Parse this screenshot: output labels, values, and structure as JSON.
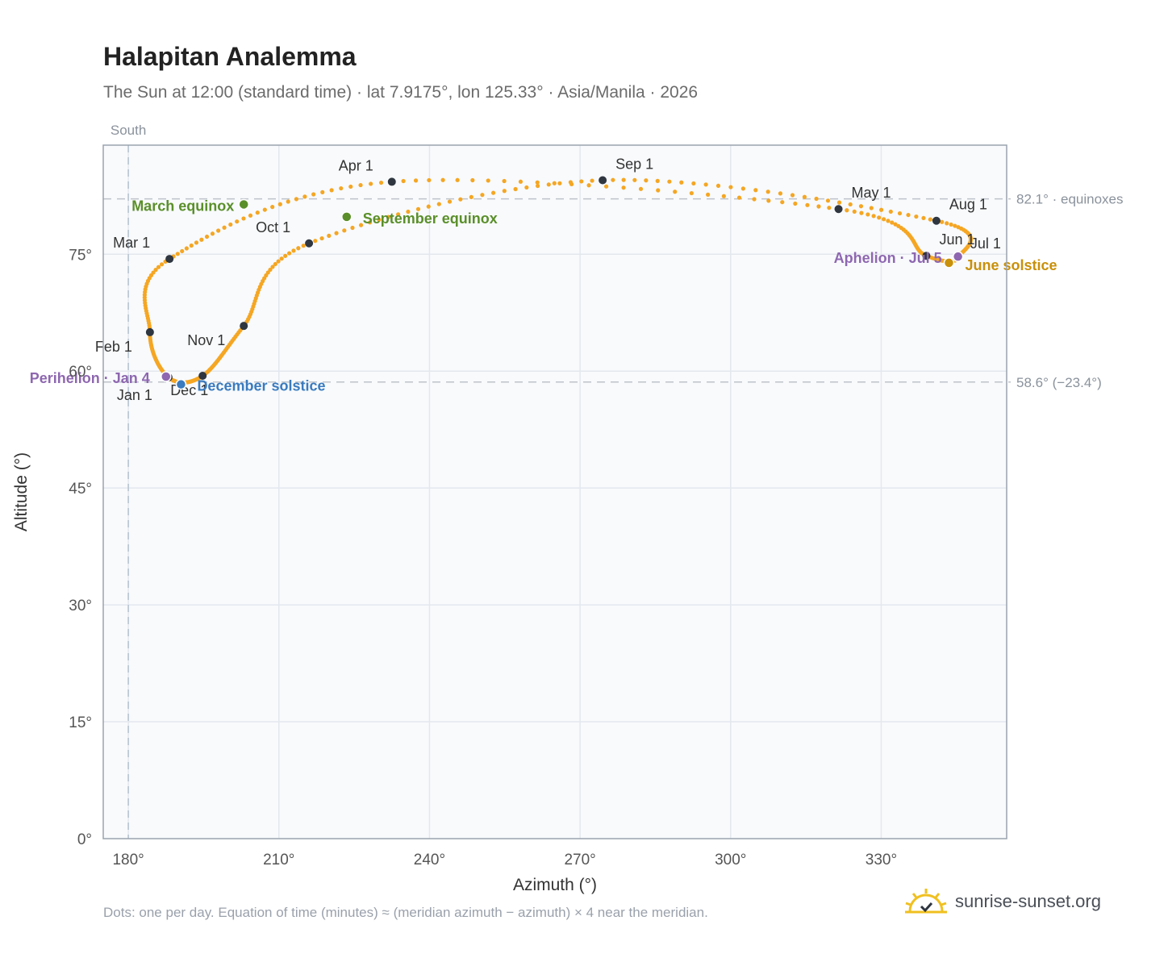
{
  "header": {
    "title": "Halapitan Analemma",
    "subtitle": "The Sun at 12:00 (standard time) · lat 7.9175°, lon 125.33° · Asia/Manila · 2026"
  },
  "footer": {
    "note": "Dots: one per day. Equation of time (minutes) ≈ (meridian azimuth − azimuth) × 4 near the meridian.",
    "brand": "sunrise-sunset.org"
  },
  "colors": {
    "curve": "#f5a623",
    "month_dot": "#2f3640",
    "equinox": "#5a8f29",
    "june_solstice": "#c9900a",
    "december_solstice": "#3a7bbf",
    "perihelion": "#8e67b0",
    "plot_bg": "#f8fafc",
    "ref_line": "#bfc4cb",
    "logo": "#f0c020"
  },
  "chart_data": {
    "type": "scatter",
    "title": "Halapitan Analemma",
    "xlabel": "Azimuth (°)",
    "ylabel": "Altitude (°)",
    "xlim": [
      175,
      355
    ],
    "ylim": [
      0,
      89
    ],
    "xticks": [
      180,
      210,
      240,
      270,
      300,
      330
    ],
    "xtick_labels": [
      "180°",
      "210°",
      "240°",
      "270°",
      "300°",
      "330°"
    ],
    "yticks": [
      0,
      15,
      30,
      45,
      60,
      75
    ],
    "ytick_labels": [
      "0°",
      "15°",
      "30°",
      "45°",
      "60°",
      "75°"
    ],
    "grid": true,
    "meridian": {
      "azimuth": 180,
      "label": "South"
    },
    "reference_lines": [
      {
        "altitude": 82.1,
        "label": "82.1° · equinoxes"
      },
      {
        "altitude": 58.6,
        "label": "58.6° (−23.4°)"
      }
    ],
    "months": [
      {
        "label": "Jan 1",
        "az": 188.0,
        "alt": 59.2
      },
      {
        "label": "Feb 1",
        "az": 184.3,
        "alt": 65.0
      },
      {
        "label": "Mar 1",
        "az": 188.2,
        "alt": 74.4
      },
      {
        "label": "Apr 1",
        "az": 232.5,
        "alt": 84.3
      },
      {
        "label": "May 1",
        "az": 321.5,
        "alt": 80.8
      },
      {
        "label": "Jun 1",
        "az": 339.0,
        "alt": 74.8
      },
      {
        "label": "Jul 1",
        "az": 345.5,
        "alt": 74.7
      },
      {
        "label": "Aug 1",
        "az": 341.0,
        "alt": 79.3
      },
      {
        "label": "Sep 1",
        "az": 274.5,
        "alt": 84.5
      },
      {
        "label": "Oct 1",
        "az": 216.0,
        "alt": 76.4
      },
      {
        "label": "Nov 1",
        "az": 203.0,
        "alt": 65.8
      },
      {
        "label": "Dec 1",
        "az": 194.8,
        "alt": 59.4
      }
    ],
    "events": [
      {
        "label": "March equinox",
        "az": 203.0,
        "alt": 81.4,
        "kind": "equinox"
      },
      {
        "label": "September equinox",
        "az": 223.5,
        "alt": 79.8,
        "kind": "equinox"
      },
      {
        "label": "June solstice",
        "az": 343.5,
        "alt": 73.9,
        "kind": "june"
      },
      {
        "label": "December solstice",
        "az": 190.5,
        "alt": 58.3,
        "kind": "december"
      },
      {
        "label": "Perihelion · Jan 4",
        "az": 187.5,
        "alt": 59.3,
        "kind": "apsis"
      },
      {
        "label": "Aphelion · Jul 5",
        "az": 345.3,
        "alt": 74.7,
        "kind": "apsis"
      }
    ]
  }
}
